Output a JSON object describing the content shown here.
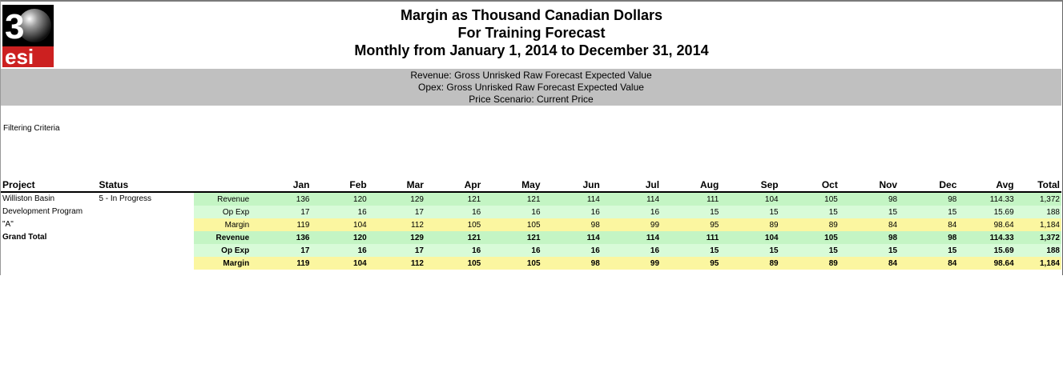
{
  "logo": {
    "number": "3",
    "text": "esi",
    "brand_color": "#cc2020"
  },
  "report": {
    "title_line1": "Margin as Thousand Canadian Dollars",
    "title_line2": "For Training Forecast",
    "title_line3": "Monthly from January 1, 2014 to December 31, 2014"
  },
  "settings": {
    "revenue": "Revenue: Gross Unrisked Raw Forecast Expected Value",
    "opex": "Opex: Gross Unrisked Raw Forecast Expected Value",
    "price": "Price Scenario: Current Price"
  },
  "filtering_label": "Filtering Criteria",
  "columns": {
    "project": "Project",
    "status": "Status",
    "months": [
      "Jan",
      "Feb",
      "Mar",
      "Apr",
      "May",
      "Jun",
      "Jul",
      "Aug",
      "Sep",
      "Oct",
      "Nov",
      "Dec",
      "Avg",
      "Total"
    ]
  },
  "project": {
    "name_lines": [
      "Williston Basin",
      "Development Program",
      "\"A\""
    ],
    "status": "5 - In Progress",
    "rows": [
      {
        "measure": "Revenue",
        "values": [
          "136",
          "120",
          "129",
          "121",
          "121",
          "114",
          "114",
          "111",
          "104",
          "105",
          "98",
          "98",
          "114.33",
          "1,372"
        ]
      },
      {
        "measure": "Op Exp",
        "values": [
          "17",
          "16",
          "17",
          "16",
          "16",
          "16",
          "16",
          "15",
          "15",
          "15",
          "15",
          "15",
          "15.69",
          "188"
        ]
      },
      {
        "measure": "Margin",
        "values": [
          "119",
          "104",
          "112",
          "105",
          "105",
          "98",
          "99",
          "95",
          "89",
          "89",
          "84",
          "84",
          "98.64",
          "1,184"
        ]
      }
    ]
  },
  "grand_total": {
    "label": "Grand Total",
    "rows": [
      {
        "measure": "Revenue",
        "values": [
          "136",
          "120",
          "129",
          "121",
          "121",
          "114",
          "114",
          "111",
          "104",
          "105",
          "98",
          "98",
          "114.33",
          "1,372"
        ]
      },
      {
        "measure": "Op Exp",
        "values": [
          "17",
          "16",
          "17",
          "16",
          "16",
          "16",
          "16",
          "15",
          "15",
          "15",
          "15",
          "15",
          "15.69",
          "188"
        ]
      },
      {
        "measure": "Margin",
        "values": [
          "119",
          "104",
          "112",
          "105",
          "105",
          "98",
          "99",
          "95",
          "89",
          "89",
          "84",
          "84",
          "98.64",
          "1,184"
        ]
      }
    ]
  },
  "colors": {
    "revenue_bg": "#c4f5c4",
    "opex_bg": "#d8fbd8",
    "margin_bg": "#fbf6a0",
    "band_bg": "#c0c0c0"
  }
}
